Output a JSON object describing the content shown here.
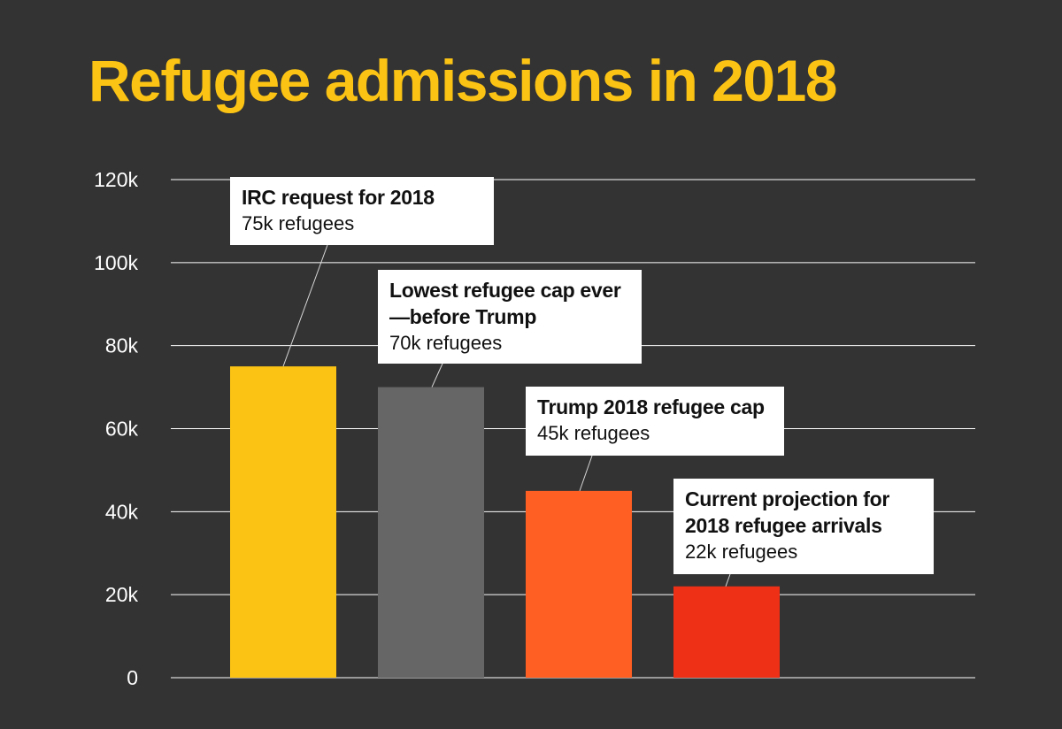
{
  "chart_data": {
    "type": "bar",
    "title": "Refugee admissions in 2018",
    "xlabel": "",
    "ylabel": "",
    "ylim": [
      0,
      120000
    ],
    "y_ticks": [
      {
        "value": 0,
        "label": "0"
      },
      {
        "value": 20000,
        "label": "20k"
      },
      {
        "value": 40000,
        "label": "40k"
      },
      {
        "value": 60000,
        "label": "60k"
      },
      {
        "value": 80000,
        "label": "80k"
      },
      {
        "value": 100000,
        "label": "100k"
      },
      {
        "value": 120000,
        "label": "120k"
      }
    ],
    "grid": true,
    "bars": [
      {
        "title": "IRC request for 2018",
        "value_label": "75k refugees",
        "value": 75000,
        "color": "#FBC314"
      },
      {
        "title": "Lowest refugee cap ever\n—before Trump",
        "value_label": "70k refugees",
        "value": 70000,
        "color": "#666666"
      },
      {
        "title": "Trump 2018 refugee cap",
        "value_label": "45k refugees",
        "value": 45000,
        "color": "#FF5F22"
      },
      {
        "title": "Current projection for\n2018 refugee arrivals",
        "value_label": "22k refugees",
        "value": 22000,
        "color": "#EE3016"
      }
    ]
  }
}
